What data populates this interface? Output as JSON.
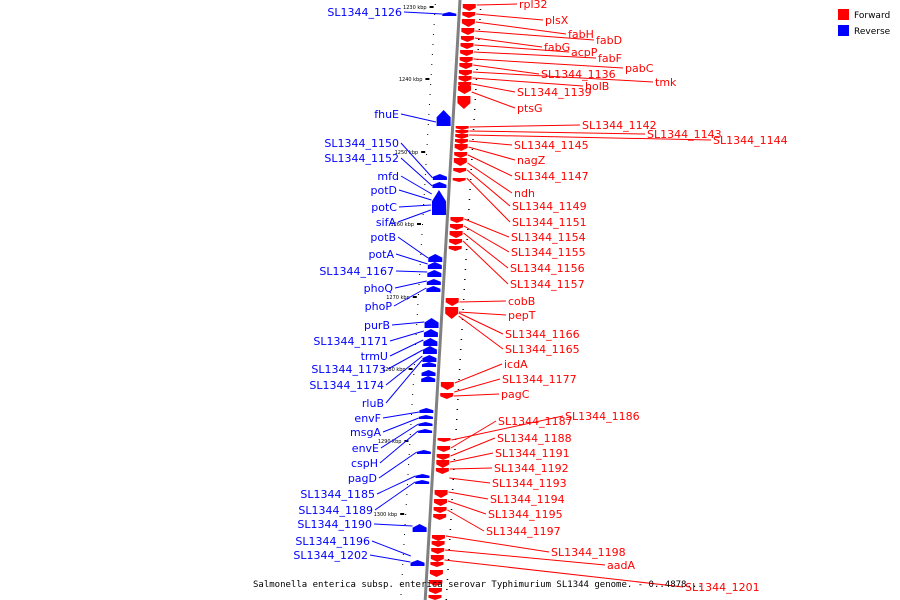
{
  "colors": {
    "forward": "#ff0000",
    "reverse": "#0000ff",
    "backbone": "#808080"
  },
  "legend": {
    "forward_label": "Forward",
    "reverse_label": "Reverse"
  },
  "caption": "Salmonella enterica subsp. enterica serovar Typhimurium SL1344 genome. - 0..4878...",
  "ticks": [
    "1230 kbp",
    "1240 kbp",
    "1250 kbp",
    "1260 kbp",
    "1270 kbp",
    "1280 kbp",
    "1290 kbp",
    "1300 kbp"
  ],
  "forward_genes": [
    "rpl32",
    "plsX",
    "fabH",
    "fabD",
    "fabG",
    "acpP",
    "fabF",
    "pabC",
    "SL1344_1136",
    "tmk",
    "holB",
    "SL1344_1139",
    "ptsG",
    "SL1344_1142",
    "SL1344_1143",
    "SL1344_1144",
    "SL1344_1145",
    "nagZ",
    "SL1344_1147",
    "ndh",
    "SL1344_1149",
    "SL1344_1151",
    "SL1344_1154",
    "SL1344_1155",
    "SL1344_1156",
    "SL1344_1157",
    "cobB",
    "pepT",
    "SL1344_1166",
    "SL1344_1165",
    "icdA",
    "SL1344_1177",
    "pagC",
    "SL1344_1186",
    "SL1344_1187",
    "SL1344_1188",
    "SL1344_1191",
    "SL1344_1192",
    "SL1344_1193",
    "SL1344_1194",
    "SL1344_1195",
    "SL1344_1197",
    "SL1344_1198",
    "aadA",
    "SL1344_1201"
  ],
  "reverse_genes": [
    "SL1344_1126",
    "fhuE",
    "SL1344_1150",
    "SL1344_1152",
    "mfd",
    "potD",
    "potC",
    "sifA",
    "potB",
    "potA",
    "SL1344_1167",
    "phoQ",
    "phoP",
    "purB",
    "SL1344_1171",
    "trmU",
    "SL1344_1173",
    "SL1344_1174",
    "rluB",
    "envF",
    "msgA",
    "envE",
    "cspH",
    "pagD",
    "SL1344_1185",
    "SL1344_1189",
    "SL1344_1190",
    "SL1344_1196",
    "SL1344_1202"
  ]
}
